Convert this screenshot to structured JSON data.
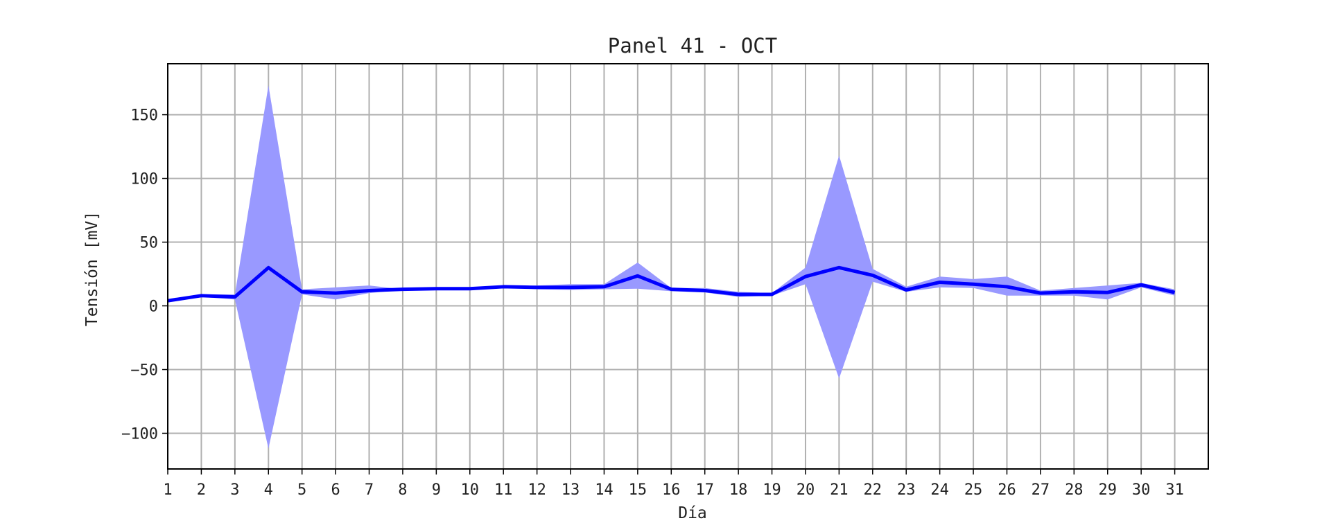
{
  "chart_data": {
    "type": "line",
    "title": "Panel 41 - OCT",
    "xlabel": "Día",
    "ylabel": "Tensión [mV]",
    "xlim": [
      1,
      32
    ],
    "ylim": [
      -128,
      190
    ],
    "x_ticks": [
      1,
      2,
      3,
      4,
      5,
      6,
      7,
      8,
      9,
      10,
      11,
      12,
      13,
      14,
      15,
      16,
      17,
      18,
      19,
      20,
      21,
      22,
      23,
      24,
      25,
      26,
      27,
      28,
      29,
      30,
      31
    ],
    "y_ticks": [
      -100,
      -50,
      0,
      50,
      100,
      150
    ],
    "y_tick_labels": [
      "−100",
      "−50",
      "0",
      "50",
      "100",
      "150"
    ],
    "grid": true,
    "x": [
      1,
      2,
      3,
      4,
      5,
      6,
      7,
      8,
      9,
      10,
      11,
      12,
      13,
      14,
      15,
      16,
      17,
      18,
      19,
      20,
      21,
      22,
      23,
      24,
      25,
      26,
      27,
      28,
      29,
      30,
      31
    ],
    "series": [
      {
        "type": "line",
        "color": "#0000ff",
        "values": [
          4,
          8,
          7,
          30,
          11,
          10,
          12,
          13,
          13.5,
          13.5,
          15,
          14.5,
          14.5,
          15,
          23.5,
          13,
          12,
          9,
          9,
          23,
          30,
          24,
          12.5,
          18.5,
          17,
          15,
          10,
          11,
          10.5,
          16.5,
          10.5
        ]
      },
      {
        "type": "band",
        "color": "#9999ff",
        "upper": [
          4,
          9,
          9,
          173,
          13,
          14.5,
          16,
          13,
          13.5,
          13.5,
          15,
          16,
          17,
          17,
          34,
          14,
          14,
          11,
          10,
          30,
          118,
          29,
          15,
          23,
          21,
          23,
          12,
          14,
          16,
          18,
          13
        ],
        "lower": [
          4,
          7,
          5,
          -112,
          9,
          5,
          10,
          12.5,
          13.5,
          13.5,
          15,
          13,
          12.5,
          13,
          13.5,
          11.5,
          10.5,
          7,
          8,
          17,
          -57,
          19,
          11,
          14.5,
          14,
          8,
          8,
          8,
          5,
          14.5,
          8
        ]
      }
    ]
  }
}
